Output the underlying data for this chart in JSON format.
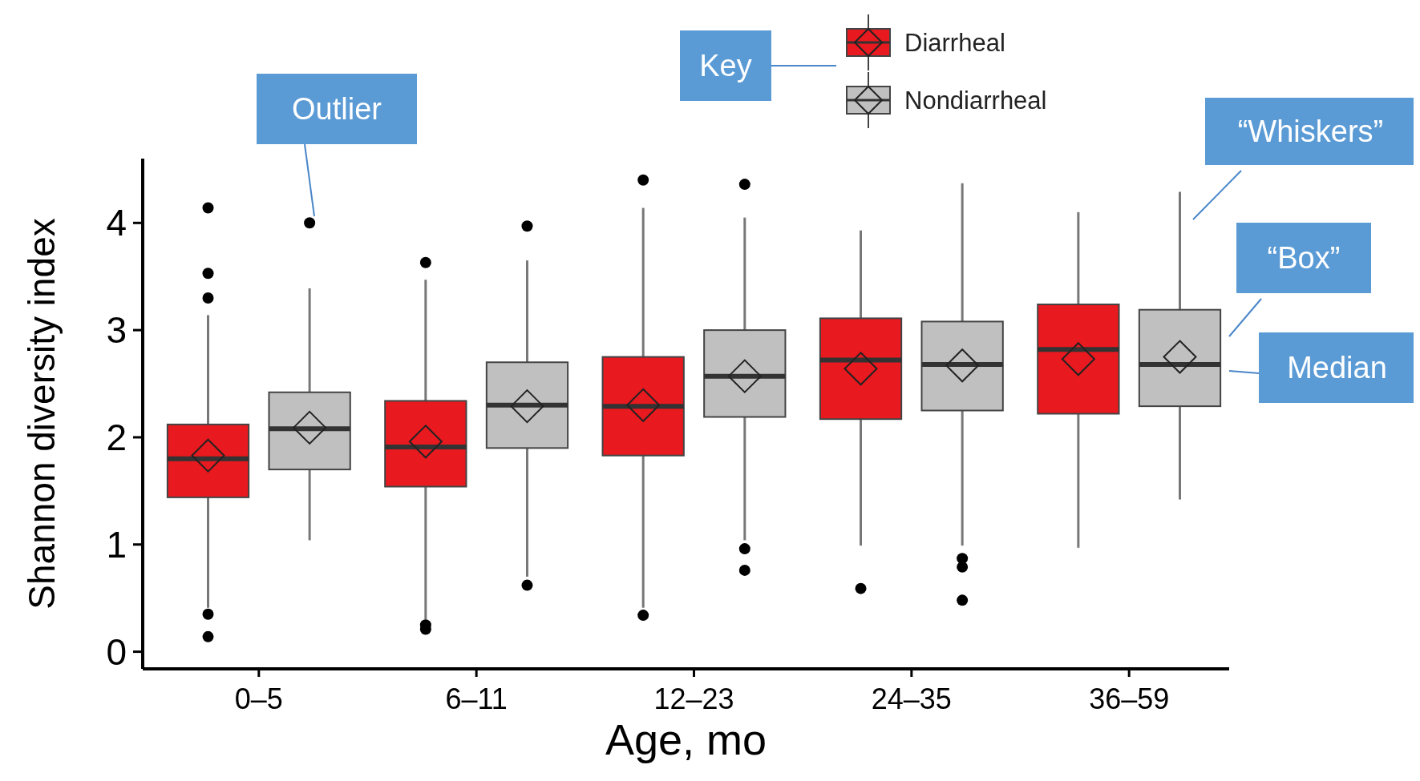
{
  "chart_data": {
    "type": "box",
    "xlabel": "Age, mo",
    "ylabel": "Shannon diversity index",
    "categories": [
      "0–5",
      "6–11",
      "12–23",
      "24–35",
      "36–59"
    ],
    "ylim": [
      -0.16,
      4.6
    ],
    "yticks": [
      0,
      1,
      2,
      3,
      4
    ],
    "grid": false,
    "legend": "top",
    "annotations": [
      "Outlier",
      "Key",
      "“Whiskers”",
      "“Box”",
      "Median"
    ],
    "series": [
      {
        "name": "Diarrheal",
        "color": "#e8191f",
        "boxes": [
          {
            "low": 0.41,
            "q1": 1.44,
            "median": 1.8,
            "q3": 2.12,
            "high": 3.14,
            "mean": 1.83,
            "outliers": [
              4.14,
              3.53,
              3.3,
              0.35,
              0.14
            ]
          },
          {
            "low": 0.3,
            "q1": 1.54,
            "median": 1.91,
            "q3": 2.34,
            "high": 3.47,
            "mean": 1.96,
            "outliers": [
              3.63,
              0.25,
              0.21
            ]
          },
          {
            "low": 0.41,
            "q1": 1.83,
            "median": 2.29,
            "q3": 2.75,
            "high": 4.14,
            "mean": 2.3,
            "outliers": [
              4.4,
              0.34
            ]
          },
          {
            "low": 0.99,
            "q1": 2.17,
            "median": 2.72,
            "q3": 3.11,
            "high": 3.93,
            "mean": 2.64,
            "outliers": [
              0.59
            ]
          },
          {
            "low": 0.97,
            "q1": 2.22,
            "median": 2.82,
            "q3": 3.24,
            "high": 4.1,
            "mean": 2.73
          }
        ]
      },
      {
        "name": "Nondiarrheal",
        "color": "#c0c0c0",
        "boxes": [
          {
            "low": 1.04,
            "q1": 1.7,
            "median": 2.08,
            "q3": 2.42,
            "high": 3.39,
            "mean": 2.09,
            "outliers": [
              4.0
            ]
          },
          {
            "low": 0.7,
            "q1": 1.9,
            "median": 2.3,
            "q3": 2.7,
            "high": 3.65,
            "mean": 2.29,
            "outliers": [
              3.97,
              0.62
            ]
          },
          {
            "low": 1.04,
            "q1": 2.19,
            "median": 2.57,
            "q3": 3.0,
            "high": 4.05,
            "mean": 2.57,
            "outliers": [
              4.36,
              0.96,
              0.76
            ]
          },
          {
            "low": 0.99,
            "q1": 2.25,
            "median": 2.68,
            "q3": 3.08,
            "high": 4.37,
            "mean": 2.67,
            "outliers": [
              0.87,
              0.79,
              0.48
            ]
          },
          {
            "low": 1.42,
            "q1": 2.29,
            "median": 2.68,
            "q3": 3.19,
            "high": 4.29,
            "mean": 2.75
          }
        ]
      }
    ]
  }
}
